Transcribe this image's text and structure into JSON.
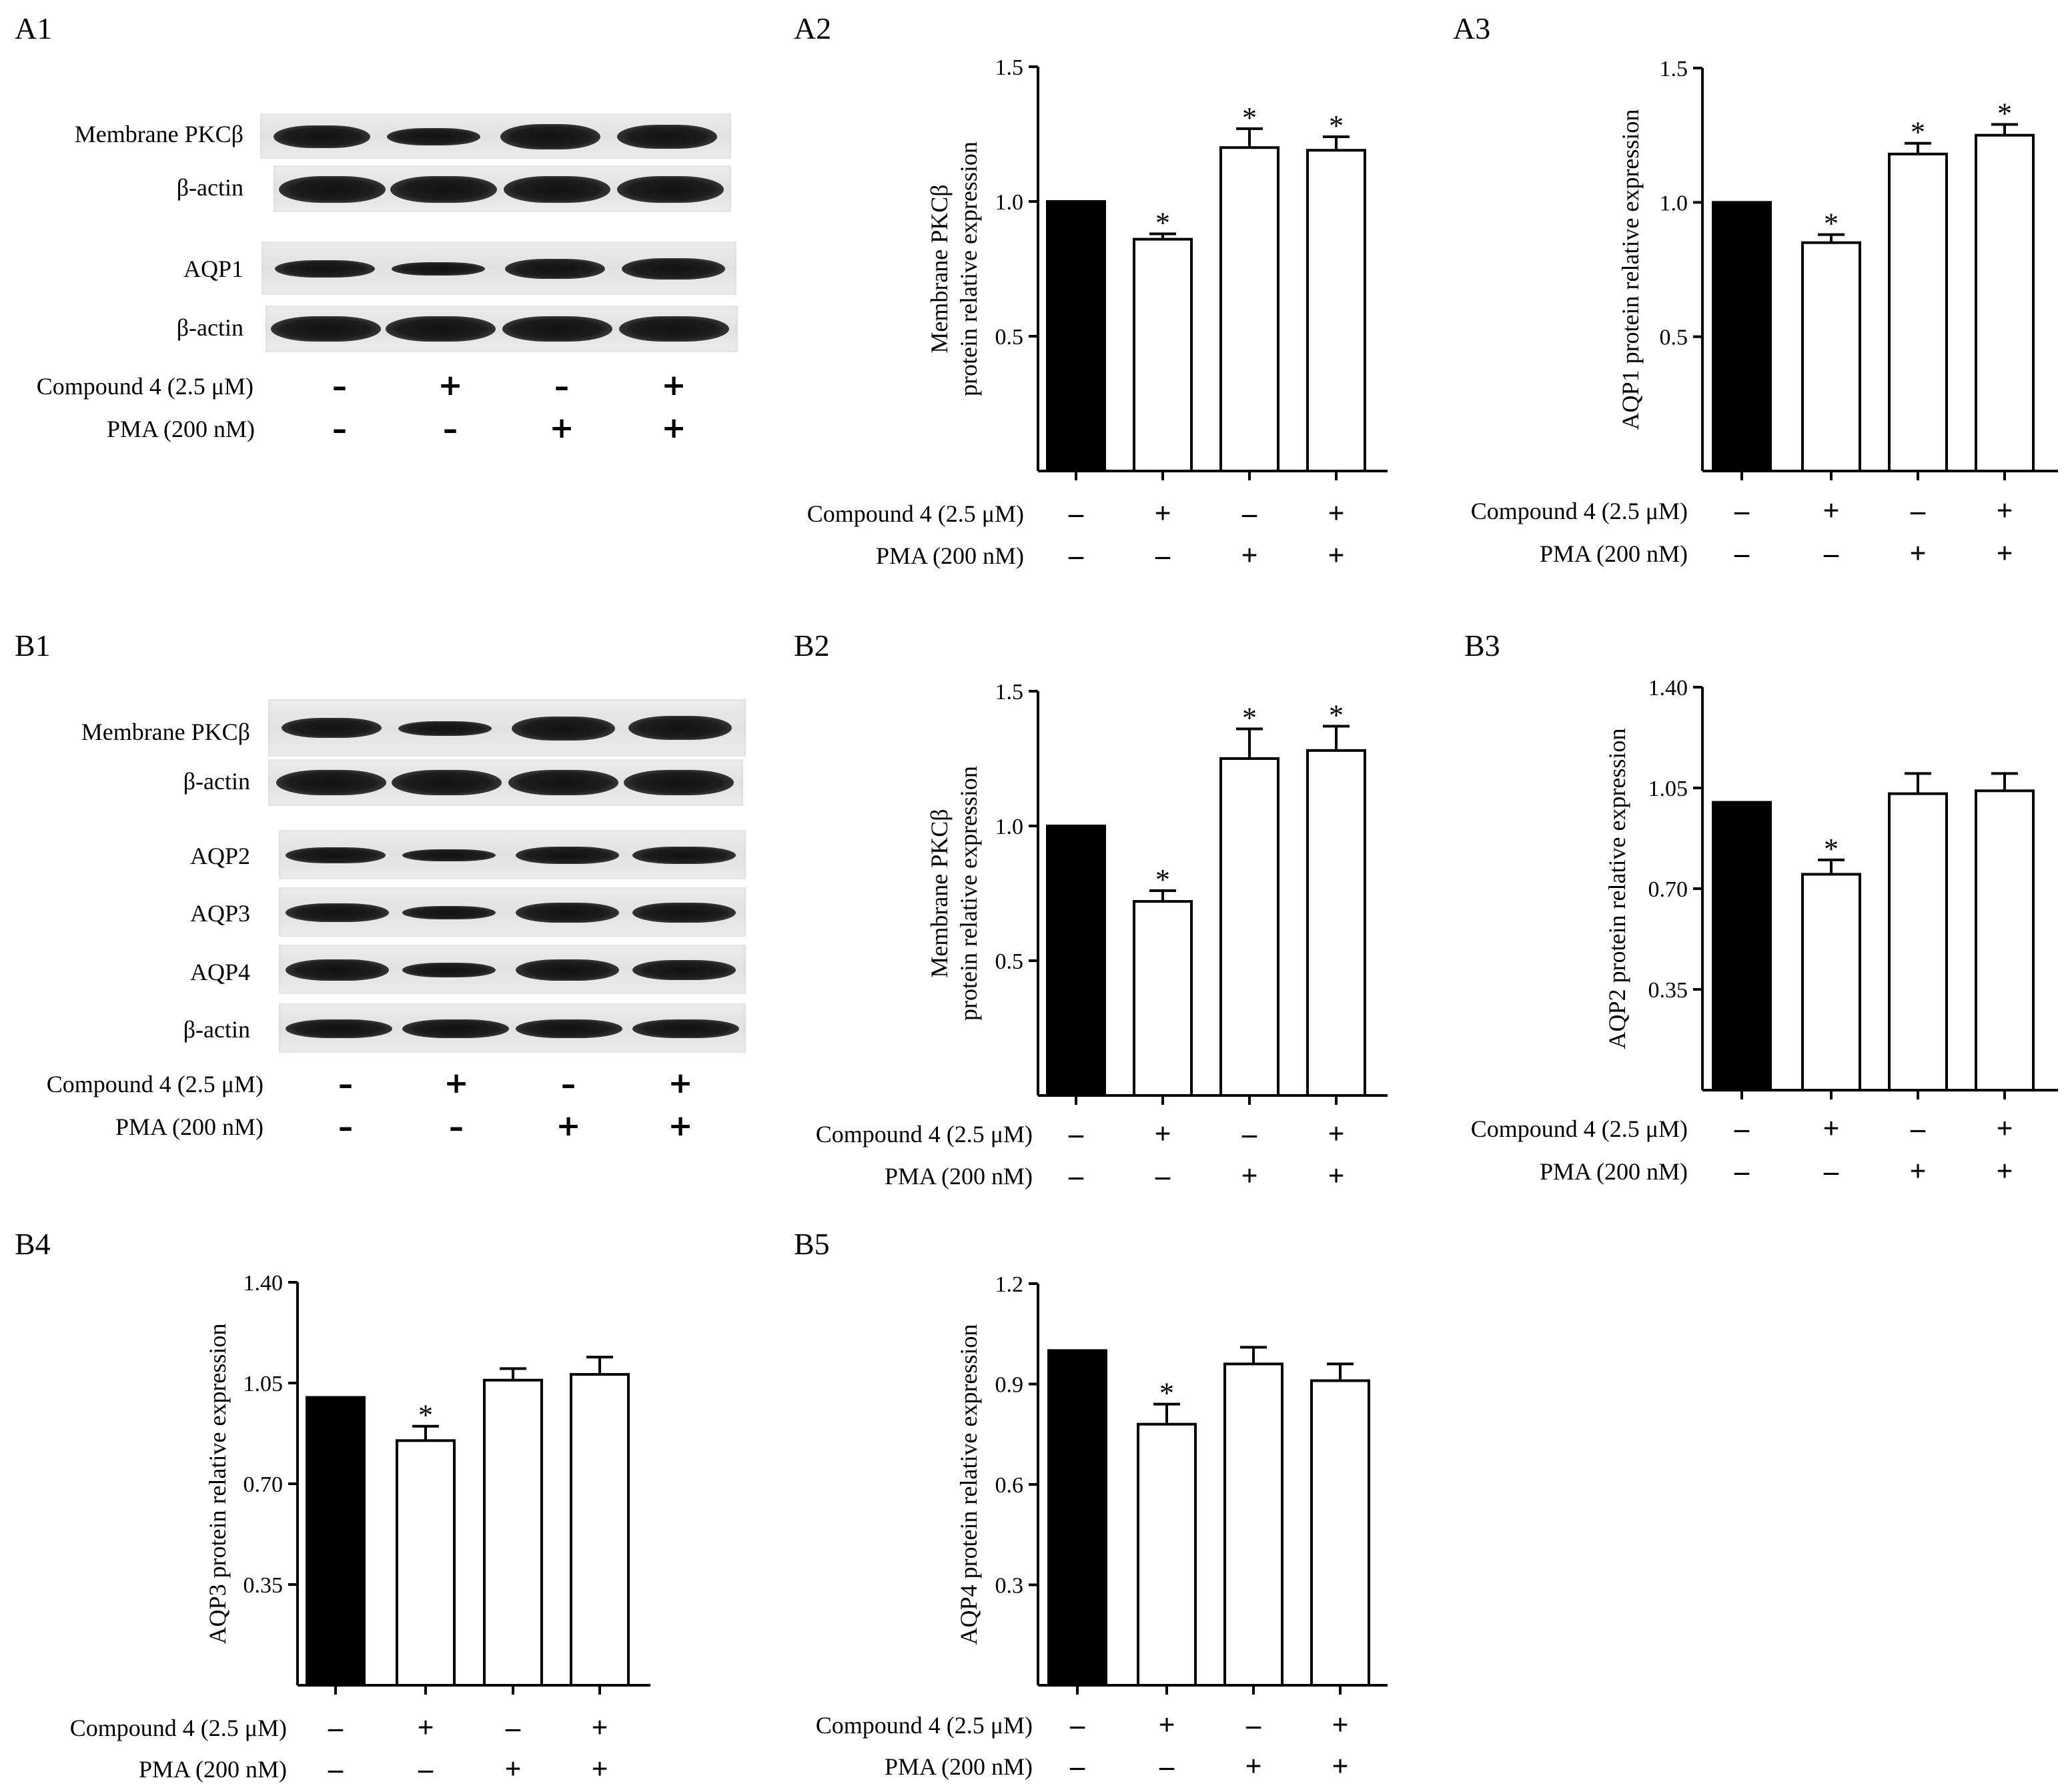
{
  "panels": {
    "A1": "A1",
    "A2": "A2",
    "A3": "A3",
    "B1": "B1",
    "B2": "B2",
    "B3": "B3",
    "B4": "B4",
    "B5": "B5"
  },
  "treatments": {
    "compound_label": "Compound 4 (2.5 μM)",
    "compound_label_b1": "Compound 4  (2.5 μM)",
    "pma_label": "PMA (200 nM)",
    "compound_signs": [
      "–",
      "+",
      "–",
      "+"
    ],
    "pma_signs": [
      "–",
      "–",
      "+",
      "+"
    ]
  },
  "blots": {
    "A1": [
      "Membrane PKCβ",
      "β-actin",
      "AQP1",
      "β-actin"
    ],
    "B1": [
      "Membrane PKCβ",
      "β-actin",
      "AQP2",
      "AQP3",
      "AQP4",
      "β-actin"
    ]
  },
  "chart_data": [
    {
      "id": "A2",
      "type": "bar",
      "ylabel": [
        "Membrane PKCβ",
        "protein  relative expression"
      ],
      "ylim": [
        0,
        1.5
      ],
      "yticks": [
        "0.5",
        "1.0",
        "1.5"
      ],
      "ytick_values": [
        0.5,
        1.0,
        1.5
      ],
      "values": [
        1.0,
        0.86,
        1.2,
        1.19
      ],
      "errors": [
        0,
        0.02,
        0.07,
        0.05
      ],
      "significant": [
        false,
        true,
        true,
        true
      ],
      "fills": [
        "#000000",
        "#ffffff",
        "#ffffff",
        "#ffffff"
      ],
      "marker": "*"
    },
    {
      "id": "A3",
      "type": "bar",
      "ylabel": [
        "AQP1 protein  relative expression"
      ],
      "ylim": [
        0,
        1.5
      ],
      "yticks": [
        "0.5",
        "1.0",
        "1.5"
      ],
      "ytick_values": [
        0.5,
        1.0,
        1.5
      ],
      "values": [
        1.0,
        0.85,
        1.18,
        1.25
      ],
      "errors": [
        0,
        0.03,
        0.04,
        0.04
      ],
      "significant": [
        false,
        true,
        true,
        true
      ],
      "fills": [
        "#000000",
        "#ffffff",
        "#ffffff",
        "#ffffff"
      ],
      "marker": "*"
    },
    {
      "id": "B2",
      "type": "bar",
      "ylabel": [
        "Membrane PKCβ",
        "protein  relative expression"
      ],
      "ylim": [
        0,
        1.5
      ],
      "yticks": [
        "0.5",
        "1.0",
        "1.5"
      ],
      "ytick_values": [
        0.5,
        1.0,
        1.5
      ],
      "values": [
        1.0,
        0.72,
        1.25,
        1.28
      ],
      "errors": [
        0,
        0.04,
        0.11,
        0.09
      ],
      "significant": [
        false,
        true,
        true,
        true
      ],
      "fills": [
        "#000000",
        "#ffffff",
        "#ffffff",
        "#ffffff"
      ],
      "marker": "*"
    },
    {
      "id": "B3",
      "type": "bar",
      "ylabel": [
        "AQP2 protein  relative expression"
      ],
      "ylim": [
        0,
        1.4
      ],
      "yticks": [
        "0.35",
        "0.70",
        "1.05",
        "1.40"
      ],
      "ytick_values": [
        0.35,
        0.7,
        1.05,
        1.4
      ],
      "values": [
        1.0,
        0.75,
        1.03,
        1.04
      ],
      "errors": [
        0,
        0.05,
        0.07,
        0.06
      ],
      "significant": [
        false,
        true,
        false,
        false
      ],
      "fills": [
        "#000000",
        "#ffffff",
        "#ffffff",
        "#ffffff"
      ],
      "marker": "*"
    },
    {
      "id": "B4",
      "type": "bar",
      "ylabel": [
        "AQP3 protein  relative expression"
      ],
      "ylim": [
        0,
        1.4
      ],
      "yticks": [
        "0.35",
        "0.70",
        "1.05",
        "1.40"
      ],
      "ytick_values": [
        0.35,
        0.7,
        1.05,
        1.4
      ],
      "values": [
        1.0,
        0.85,
        1.06,
        1.08
      ],
      "errors": [
        0,
        0.05,
        0.04,
        0.06
      ],
      "significant": [
        false,
        true,
        false,
        false
      ],
      "fills": [
        "#000000",
        "#ffffff",
        "#ffffff",
        "#ffffff"
      ],
      "marker": "*"
    },
    {
      "id": "B5",
      "type": "bar",
      "ylabel": [
        "AQP4 protein  relative expression"
      ],
      "ylim": [
        0,
        1.2
      ],
      "yticks": [
        "0.3",
        "0.6",
        "0.9",
        "1.2"
      ],
      "ytick_values": [
        0.3,
        0.6,
        0.9,
        1.2
      ],
      "values": [
        1.0,
        0.78,
        0.96,
        0.91
      ],
      "errors": [
        0,
        0.06,
        0.05,
        0.05
      ],
      "significant": [
        false,
        true,
        false,
        false
      ],
      "fills": [
        "#000000",
        "#ffffff",
        "#ffffff",
        "#ffffff"
      ],
      "marker": "*"
    }
  ]
}
